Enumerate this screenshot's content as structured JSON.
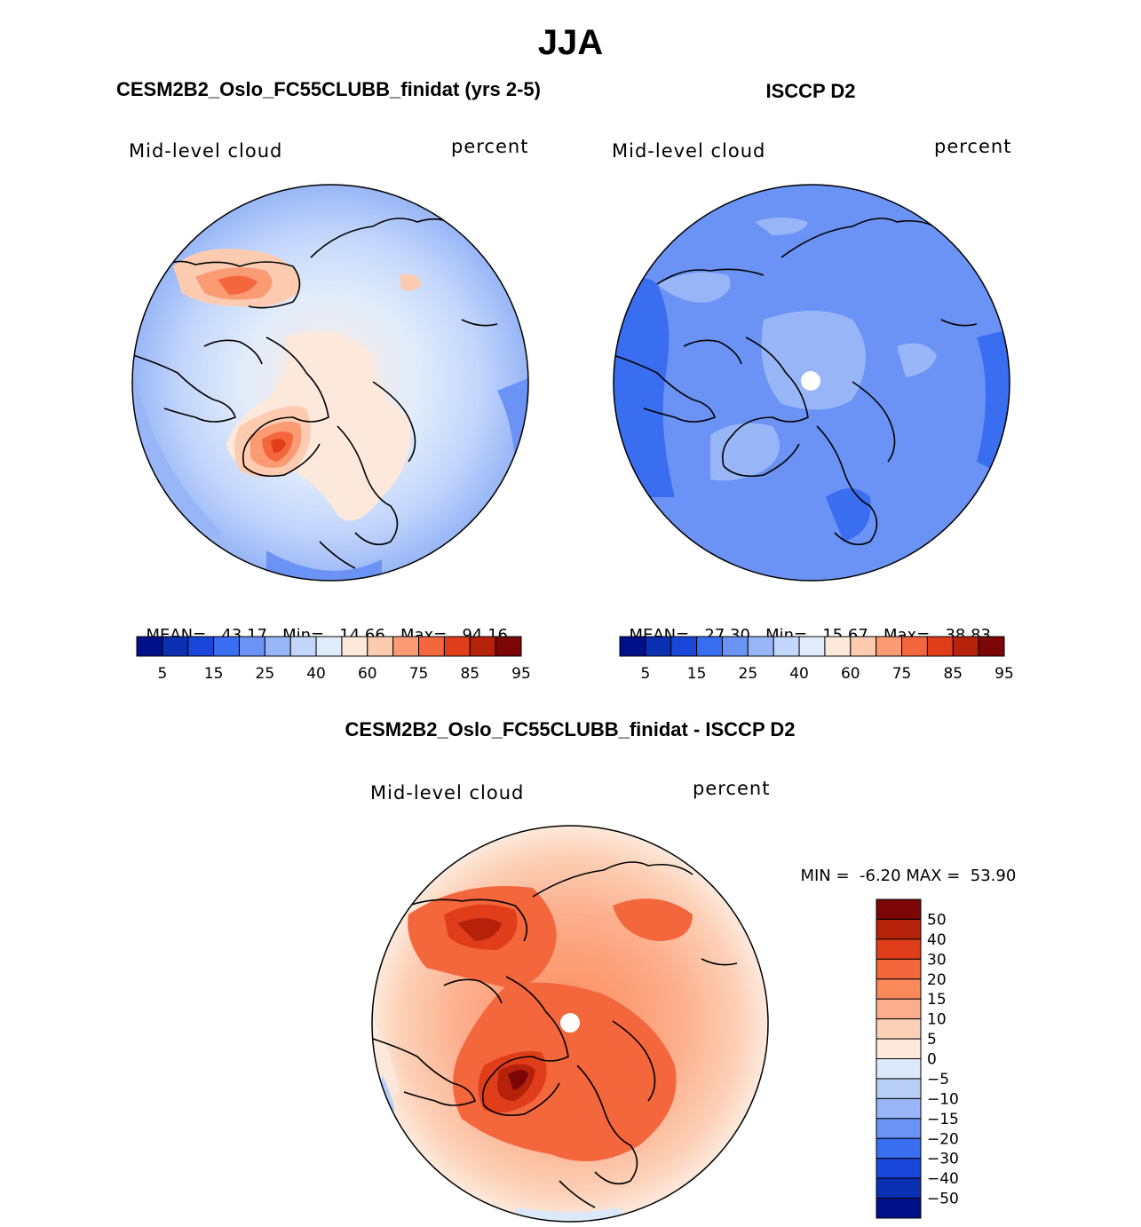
{
  "figure": {
    "season": "JJA"
  },
  "panels": [
    {
      "title": "CESM2B2_Oslo_FC55CLUBB_finidat (yrs 2-5)",
      "variable": "Mid-level cloud",
      "units": "percent",
      "stats": {
        "mean_label": "MEAN=",
        "mean": "43.17",
        "min_label": "Min=",
        "min": "14.66",
        "max_label": "Max=",
        "max": "94.16"
      }
    },
    {
      "title": "ISCCP D2",
      "variable": "Mid-level cloud",
      "units": "percent",
      "stats": {
        "mean_label": "MEAN=",
        "mean": "27.30",
        "min_label": "Min=",
        "min": "15.67",
        "max_label": "Max=",
        "max": "38.83"
      }
    },
    {
      "title": "CESM2B2_Oslo_FC55CLUBB_finidat - ISCCP D2",
      "variable": "Mid-level cloud",
      "units": "percent",
      "stats": {
        "min_label": "MIN =",
        "min": "-6.20",
        "max_label": "MAX =",
        "max": "53.90"
      }
    }
  ],
  "chart_data": [
    {
      "type": "heatmap",
      "projection": "north-polar-stereographic",
      "title": "CESM2B2_Oslo_FC55CLUBB_finidat (yrs 2-5)",
      "field": "Mid-level cloud",
      "units": "percent",
      "mean": 43.17,
      "min": 14.66,
      "max": 94.16,
      "colorbar_levels": [
        5,
        10,
        15,
        20,
        25,
        30,
        40,
        50,
        60,
        70,
        75,
        80,
        85,
        90,
        95
      ],
      "colorbar_tick_labels": [
        "5",
        "15",
        "25",
        "40",
        "60",
        "75",
        "85",
        "95"
      ],
      "colors": [
        "#00108a",
        "#0a2fb0",
        "#1846d8",
        "#3a6ef0",
        "#6a93f5",
        "#98b6f7",
        "#c3d6fb",
        "#e1ecfb",
        "#fde9db",
        "#fccbb0",
        "#fb9b74",
        "#f4663c",
        "#e03e1a",
        "#b6210a",
        "#7c0505"
      ]
    },
    {
      "type": "heatmap",
      "projection": "north-polar-stereographic",
      "title": "ISCCP D2",
      "field": "Mid-level cloud",
      "units": "percent",
      "mean": 27.3,
      "min": 15.67,
      "max": 38.83,
      "colorbar_levels": [
        5,
        10,
        15,
        20,
        25,
        30,
        40,
        50,
        60,
        70,
        75,
        80,
        85,
        90,
        95
      ],
      "colorbar_tick_labels": [
        "5",
        "15",
        "25",
        "40",
        "60",
        "75",
        "85",
        "95"
      ],
      "colors": [
        "#00108a",
        "#0a2fb0",
        "#1846d8",
        "#3a6ef0",
        "#6a93f5",
        "#98b6f7",
        "#c3d6fb",
        "#e1ecfb",
        "#fde9db",
        "#fccbb0",
        "#fb9b74",
        "#f4663c",
        "#e03e1a",
        "#b6210a",
        "#7c0505"
      ]
    },
    {
      "type": "heatmap",
      "projection": "north-polar-stereographic",
      "title": "CESM2B2_Oslo_FC55CLUBB_finidat - ISCCP D2",
      "field": "Mid-level cloud",
      "units": "percent",
      "min": -6.2,
      "max": 53.9,
      "colorbar_tick_labels": [
        "50",
        "40",
        "30",
        "20",
        "15",
        "10",
        "5",
        "0",
        "−5",
        "−10",
        "−15",
        "−20",
        "−30",
        "−40",
        "−50"
      ],
      "colors": [
        "#7c0505",
        "#b6210a",
        "#e03e1a",
        "#f4663c",
        "#fb8a5a",
        "#fcae8c",
        "#fcd0b6",
        "#fde9db",
        "#dce9fb",
        "#b8cff8",
        "#98b6f7",
        "#6a93f5",
        "#3a6ef0",
        "#1846d8",
        "#0a2fb0",
        "#00108a"
      ]
    }
  ]
}
